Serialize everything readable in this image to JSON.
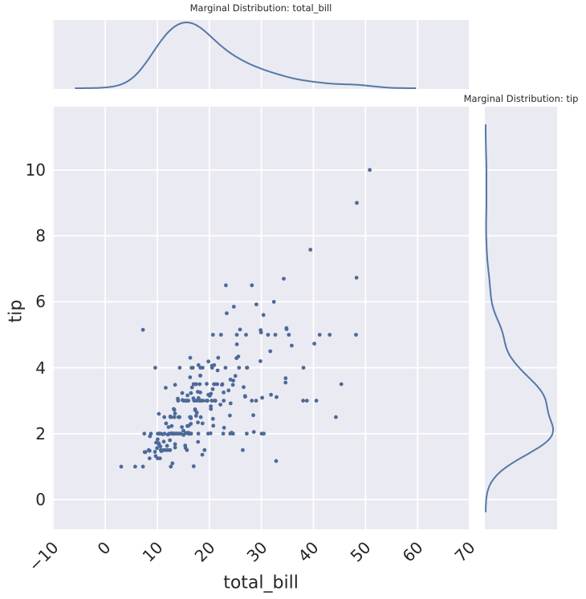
{
  "figure": {
    "top_marginal_title": "Marginal Distribution: total_bill",
    "right_marginal_title": "Marginal Distribution: tip",
    "xlabel": "total_bill",
    "ylabel": "tip"
  },
  "style": {
    "panel_bg": "#eaeaf2",
    "grid_color": "#ffffff",
    "point_color": "#4c6a99",
    "kde_line_color": "#5578a8",
    "text_color": "#262626"
  },
  "chart_data": {
    "type": "scatter",
    "title": "",
    "xlabel": "total_bill",
    "ylabel": "tip",
    "xlim": [
      -10.2,
      70.0
    ],
    "ylim": [
      -0.9,
      11.92
    ],
    "x_ticks": [
      -10,
      0,
      10,
      20,
      30,
      40,
      50,
      60,
      70
    ],
    "x_tick_labels": [
      "−10",
      "0",
      "10",
      "20",
      "30",
      "40",
      "50",
      "60",
      "70"
    ],
    "y_ticks": [
      0,
      2,
      4,
      6,
      8,
      10
    ],
    "y_tick_labels": [
      "0",
      "2",
      "4",
      "6",
      "8",
      "10"
    ],
    "grid": true,
    "marginals": [
      {
        "position": "top",
        "type": "kde",
        "variable": "total_bill",
        "title": "Marginal Distribution: total_bill"
      },
      {
        "position": "right",
        "type": "kde",
        "variable": "tip",
        "title": "Marginal Distribution: tip"
      }
    ],
    "points": [
      [
        16.99,
        1.01
      ],
      [
        10.34,
        1.66
      ],
      [
        21.01,
        3.5
      ],
      [
        23.68,
        3.31
      ],
      [
        24.59,
        3.61
      ],
      [
        25.29,
        4.71
      ],
      [
        8.77,
        2.0
      ],
      [
        26.88,
        3.12
      ],
      [
        15.04,
        1.96
      ],
      [
        14.78,
        3.23
      ],
      [
        10.27,
        1.71
      ],
      [
        35.26,
        5.0
      ],
      [
        15.42,
        1.57
      ],
      [
        18.43,
        3.0
      ],
      [
        14.83,
        3.02
      ],
      [
        21.58,
        3.92
      ],
      [
        10.33,
        1.67
      ],
      [
        16.29,
        3.71
      ],
      [
        16.97,
        3.5
      ],
      [
        20.65,
        3.35
      ],
      [
        17.92,
        4.08
      ],
      [
        20.29,
        2.75
      ],
      [
        15.77,
        2.23
      ],
      [
        39.42,
        7.58
      ],
      [
        19.82,
        3.18
      ],
      [
        17.81,
        2.34
      ],
      [
        13.37,
        2.0
      ],
      [
        12.69,
        2.0
      ],
      [
        21.7,
        4.3
      ],
      [
        19.65,
        3.0
      ],
      [
        9.55,
        1.45
      ],
      [
        18.35,
        2.5
      ],
      [
        15.06,
        3.0
      ],
      [
        20.69,
        2.45
      ],
      [
        17.78,
        3.27
      ],
      [
        24.06,
        3.64
      ],
      [
        16.31,
        2.0
      ],
      [
        16.93,
        3.07
      ],
      [
        18.69,
        2.31
      ],
      [
        31.27,
        5.0
      ],
      [
        16.04,
        2.24
      ],
      [
        17.46,
        2.54
      ],
      [
        13.94,
        3.06
      ],
      [
        9.68,
        1.32
      ],
      [
        30.4,
        5.6
      ],
      [
        18.29,
        3.0
      ],
      [
        22.23,
        5.0
      ],
      [
        32.4,
        6.0
      ],
      [
        28.55,
        2.05
      ],
      [
        18.04,
        3.0
      ],
      [
        12.54,
        2.5
      ],
      [
        10.29,
        2.6
      ],
      [
        34.81,
        5.2
      ],
      [
        9.94,
        1.56
      ],
      [
        25.56,
        4.34
      ],
      [
        19.49,
        3.51
      ],
      [
        38.01,
        3.0
      ],
      [
        26.41,
        1.5
      ],
      [
        11.24,
        1.76
      ],
      [
        48.27,
        6.73
      ],
      [
        20.29,
        3.21
      ],
      [
        13.81,
        2.0
      ],
      [
        11.02,
        1.98
      ],
      [
        18.29,
        3.76
      ],
      [
        17.59,
        2.64
      ],
      [
        20.08,
        3.15
      ],
      [
        16.45,
        2.47
      ],
      [
        3.07,
        1.0
      ],
      [
        20.23,
        2.01
      ],
      [
        15.01,
        2.09
      ],
      [
        12.02,
        1.97
      ],
      [
        17.07,
        3.0
      ],
      [
        26.86,
        3.14
      ],
      [
        25.28,
        5.0
      ],
      [
        14.73,
        2.2
      ],
      [
        10.51,
        1.25
      ],
      [
        17.92,
        3.08
      ],
      [
        27.2,
        4.0
      ],
      [
        22.76,
        3.0
      ],
      [
        17.29,
        2.71
      ],
      [
        19.44,
        3.0
      ],
      [
        16.66,
        3.4
      ],
      [
        10.07,
        1.83
      ],
      [
        32.68,
        5.0
      ],
      [
        15.98,
        2.03
      ],
      [
        34.83,
        5.17
      ],
      [
        13.03,
        2.0
      ],
      [
        18.28,
        4.0
      ],
      [
        24.71,
        5.85
      ],
      [
        21.16,
        3.0
      ],
      [
        28.97,
        3.0
      ],
      [
        22.49,
        3.5
      ],
      [
        5.75,
        1.0
      ],
      [
        16.32,
        4.3
      ],
      [
        22.75,
        3.25
      ],
      [
        40.17,
        4.73
      ],
      [
        27.28,
        4.0
      ],
      [
        12.03,
        1.5
      ],
      [
        21.01,
        3.0
      ],
      [
        12.46,
        1.5
      ],
      [
        11.35,
        2.5
      ],
      [
        15.38,
        3.0
      ],
      [
        44.3,
        2.5
      ],
      [
        22.42,
        3.48
      ],
      [
        20.92,
        4.08
      ],
      [
        15.36,
        1.64
      ],
      [
        20.49,
        4.06
      ],
      [
        25.21,
        4.29
      ],
      [
        18.24,
        3.76
      ],
      [
        14.31,
        4.0
      ],
      [
        14.0,
        3.0
      ],
      [
        7.25,
        1.0
      ],
      [
        38.07,
        4.0
      ],
      [
        23.95,
        2.55
      ],
      [
        25.71,
        4.0
      ],
      [
        17.31,
        3.5
      ],
      [
        29.93,
        5.07
      ],
      [
        10.65,
        1.5
      ],
      [
        12.43,
        1.8
      ],
      [
        24.08,
        2.92
      ],
      [
        11.69,
        2.31
      ],
      [
        13.42,
        1.68
      ],
      [
        14.26,
        2.5
      ],
      [
        15.95,
        2.0
      ],
      [
        12.48,
        2.52
      ],
      [
        29.8,
        4.2
      ],
      [
        8.52,
        1.48
      ],
      [
        14.52,
        2.0
      ],
      [
        11.38,
        2.0
      ],
      [
        22.82,
        2.18
      ],
      [
        19.08,
        1.5
      ],
      [
        20.27,
        2.83
      ],
      [
        11.17,
        1.5
      ],
      [
        12.26,
        2.0
      ],
      [
        18.26,
        3.25
      ],
      [
        8.51,
        1.25
      ],
      [
        10.33,
        2.0
      ],
      [
        14.15,
        2.0
      ],
      [
        16.0,
        2.0
      ],
      [
        13.16,
        2.75
      ],
      [
        17.47,
        3.5
      ],
      [
        34.3,
        6.7
      ],
      [
        41.19,
        5.0
      ],
      [
        27.05,
        5.0
      ],
      [
        16.43,
        2.3
      ],
      [
        8.35,
        1.5
      ],
      [
        18.64,
        1.36
      ],
      [
        11.87,
        1.63
      ],
      [
        9.78,
        1.73
      ],
      [
        7.51,
        2.0
      ],
      [
        14.07,
        2.5
      ],
      [
        13.13,
        2.0
      ],
      [
        17.26,
        2.74
      ],
      [
        24.55,
        2.0
      ],
      [
        19.77,
        2.0
      ],
      [
        29.85,
        5.14
      ],
      [
        48.17,
        5.0
      ],
      [
        25.0,
        3.75
      ],
      [
        13.39,
        2.61
      ],
      [
        16.49,
        2.0
      ],
      [
        21.5,
        3.5
      ],
      [
        12.66,
        2.5
      ],
      [
        16.21,
        2.0
      ],
      [
        13.81,
        2.0
      ],
      [
        17.51,
        3.0
      ],
      [
        24.52,
        3.48
      ],
      [
        20.76,
        2.24
      ],
      [
        31.71,
        4.5
      ],
      [
        10.59,
        1.61
      ],
      [
        10.63,
        2.0
      ],
      [
        50.81,
        10.0
      ],
      [
        15.81,
        3.16
      ],
      [
        7.25,
        5.15
      ],
      [
        31.85,
        3.18
      ],
      [
        16.82,
        4.0
      ],
      [
        32.9,
        3.11
      ],
      [
        17.89,
        2.0
      ],
      [
        14.48,
        2.0
      ],
      [
        9.6,
        4.0
      ],
      [
        34.63,
        3.55
      ],
      [
        34.65,
        3.68
      ],
      [
        23.33,
        5.65
      ],
      [
        45.35,
        3.5
      ],
      [
        23.17,
        6.5
      ],
      [
        40.55,
        3.0
      ],
      [
        20.69,
        5.0
      ],
      [
        20.9,
        3.5
      ],
      [
        30.46,
        2.0
      ],
      [
        18.15,
        3.5
      ],
      [
        23.1,
        4.0
      ],
      [
        15.69,
        1.5
      ],
      [
        19.81,
        4.19
      ],
      [
        28.44,
        2.56
      ],
      [
        15.48,
        2.02
      ],
      [
        16.58,
        4.0
      ],
      [
        7.56,
        1.44
      ],
      [
        10.34,
        2.0
      ],
      [
        43.11,
        5.0
      ],
      [
        13.0,
        2.0
      ],
      [
        13.51,
        2.0
      ],
      [
        18.71,
        4.0
      ],
      [
        12.74,
        2.01
      ],
      [
        13.0,
        2.0
      ],
      [
        16.4,
        2.5
      ],
      [
        20.53,
        4.0
      ],
      [
        16.47,
        3.23
      ],
      [
        26.59,
        3.41
      ],
      [
        38.73,
        3.0
      ],
      [
        24.27,
        2.03
      ],
      [
        12.76,
        2.23
      ],
      [
        30.06,
        2.0
      ],
      [
        25.89,
        5.16
      ],
      [
        48.33,
        9.0
      ],
      [
        13.27,
        2.5
      ],
      [
        28.17,
        6.5
      ],
      [
        12.9,
        1.1
      ],
      [
        28.15,
        3.0
      ],
      [
        11.59,
        1.5
      ],
      [
        7.74,
        1.44
      ],
      [
        30.14,
        3.09
      ],
      [
        12.16,
        2.2
      ],
      [
        13.42,
        3.48
      ],
      [
        8.58,
        1.92
      ],
      [
        15.98,
        3.0
      ],
      [
        13.42,
        1.58
      ],
      [
        16.27,
        2.5
      ],
      [
        10.09,
        2.0
      ],
      [
        20.45,
        3.0
      ],
      [
        13.28,
        2.72
      ],
      [
        22.12,
        2.88
      ],
      [
        24.01,
        2.0
      ],
      [
        15.69,
        3.0
      ],
      [
        11.61,
        3.39
      ],
      [
        10.77,
        1.47
      ],
      [
        15.53,
        3.0
      ],
      [
        10.07,
        1.25
      ],
      [
        12.6,
        1.0
      ],
      [
        32.83,
        1.17
      ],
      [
        35.83,
        4.67
      ],
      [
        29.03,
        5.92
      ],
      [
        27.18,
        2.0
      ],
      [
        22.67,
        2.0
      ],
      [
        17.82,
        1.75
      ],
      [
        18.78,
        3.0
      ]
    ]
  }
}
